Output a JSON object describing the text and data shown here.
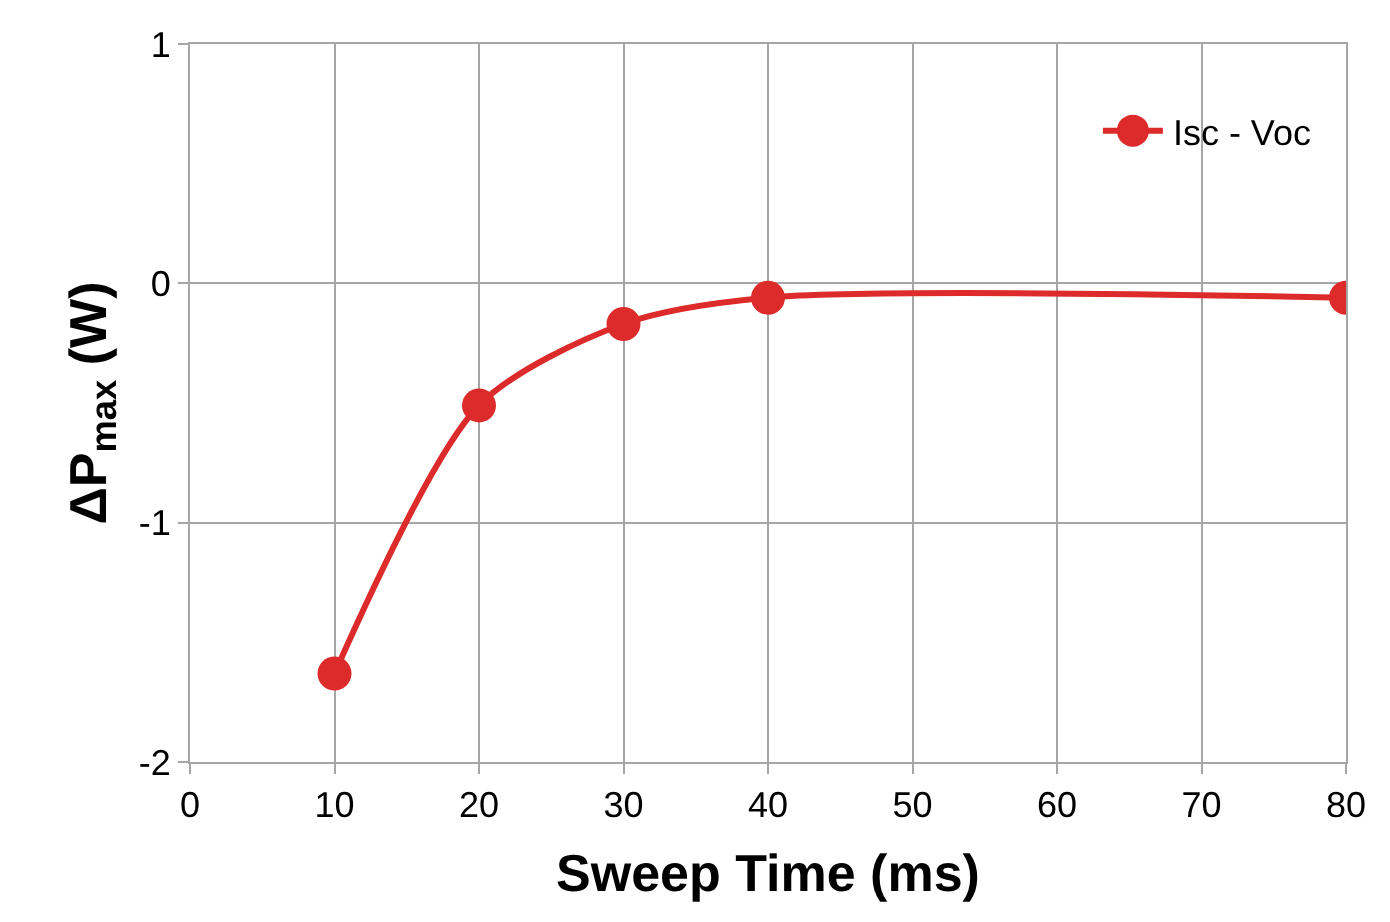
{
  "chart_data": {
    "type": "line",
    "xlabel": "Sweep Time (ms)",
    "ylabel": "ΔP$_{max}$ (W)",
    "x": [
      10,
      20,
      30,
      40,
      80
    ],
    "series": [
      {
        "name": "Isc - Voc",
        "color": "#dd2a2a",
        "values": [
          -1.63,
          -0.51,
          -0.17,
          -0.06,
          -0.06
        ]
      }
    ],
    "xlim": [
      0,
      80
    ],
    "xticks": [
      0,
      10,
      20,
      30,
      40,
      50,
      60,
      70,
      80
    ],
    "ylim": [
      -2,
      1
    ],
    "yticks": [
      -2,
      -1,
      0,
      1
    ],
    "grid": true,
    "legend": "top right",
    "marker": "circle",
    "line_style": "solid"
  }
}
